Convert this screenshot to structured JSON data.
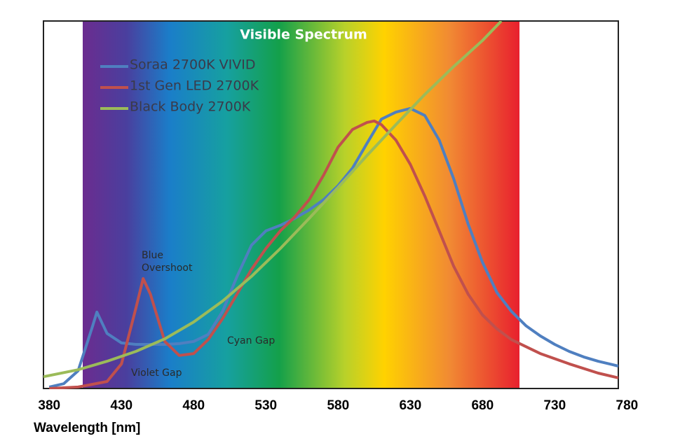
{
  "chart_data": {
    "type": "line",
    "title": "Visible Spectrum",
    "x_label": "Wavelength [nm]",
    "xlim": [
      376,
      774
    ],
    "ylim": [
      0,
      100
    ],
    "xticks": [
      380,
      430,
      480,
      530,
      580,
      630,
      680,
      730,
      780
    ],
    "legend": "top-left",
    "annotations": [
      "Blue Overshoot",
      "Cyan Gap",
      "Violet Gap"
    ],
    "series": [
      {
        "name": "Soraa 2700K VIVID",
        "color": "#4f7fc0",
        "x": [
          380,
          390,
          400,
          410,
          413,
          420,
          430,
          440,
          450,
          460,
          470,
          480,
          490,
          500,
          510,
          520,
          530,
          540,
          550,
          560,
          570,
          580,
          590,
          600,
          610,
          620,
          630,
          640,
          650,
          660,
          670,
          680,
          690,
          700,
          710,
          720,
          730,
          740,
          750,
          760,
          770,
          774
        ],
        "values": [
          0.4,
          1.3,
          4.8,
          17,
          20.8,
          15,
          12.4,
          12,
          12,
          12,
          12.2,
          12.8,
          14.7,
          21,
          30.5,
          39,
          42.9,
          44.4,
          46.3,
          48.6,
          51.4,
          55.2,
          60,
          66.7,
          73.3,
          75.2,
          76.2,
          74.3,
          67.6,
          57.1,
          44.8,
          34.3,
          26.1,
          21,
          17.1,
          14.3,
          12,
          10.1,
          8.6,
          7.4,
          6.5,
          6.1
        ]
      },
      {
        "name": "1st Gen LED 2700K",
        "color": "#c0504d",
        "x": [
          380,
          400,
          420,
          430,
          440,
          445,
          450,
          460,
          470,
          480,
          490,
          500,
          510,
          520,
          530,
          540,
          550,
          560,
          570,
          580,
          590,
          600,
          605,
          610,
          620,
          630,
          640,
          650,
          660,
          670,
          680,
          690,
          700,
          720,
          740,
          760,
          774
        ],
        "values": [
          0,
          0.4,
          1.9,
          6.7,
          21.9,
          29.9,
          25.7,
          12.8,
          9,
          9.5,
          13.3,
          19,
          25.7,
          32.4,
          38.1,
          42.9,
          46.7,
          51.4,
          58.1,
          65.7,
          70.5,
          72.4,
          72.8,
          71.8,
          67.6,
          61,
          52.4,
          42.9,
          33.3,
          25.7,
          20,
          16.2,
          13.3,
          9.5,
          6.7,
          4.2,
          2.9
        ]
      },
      {
        "name": "Black Body 2700K",
        "color": "#9bbb59",
        "x": [
          376,
          400,
          420,
          440,
          460,
          480,
          500,
          520,
          540,
          560,
          580,
          600,
          620,
          640,
          660,
          680,
          693
        ],
        "values": [
          3.2,
          5.1,
          7.4,
          10.1,
          13.5,
          18.1,
          23.8,
          30.5,
          38.1,
          46.3,
          54.7,
          63.4,
          71.8,
          80,
          87.6,
          94.7,
          100
        ]
      }
    ]
  }
}
